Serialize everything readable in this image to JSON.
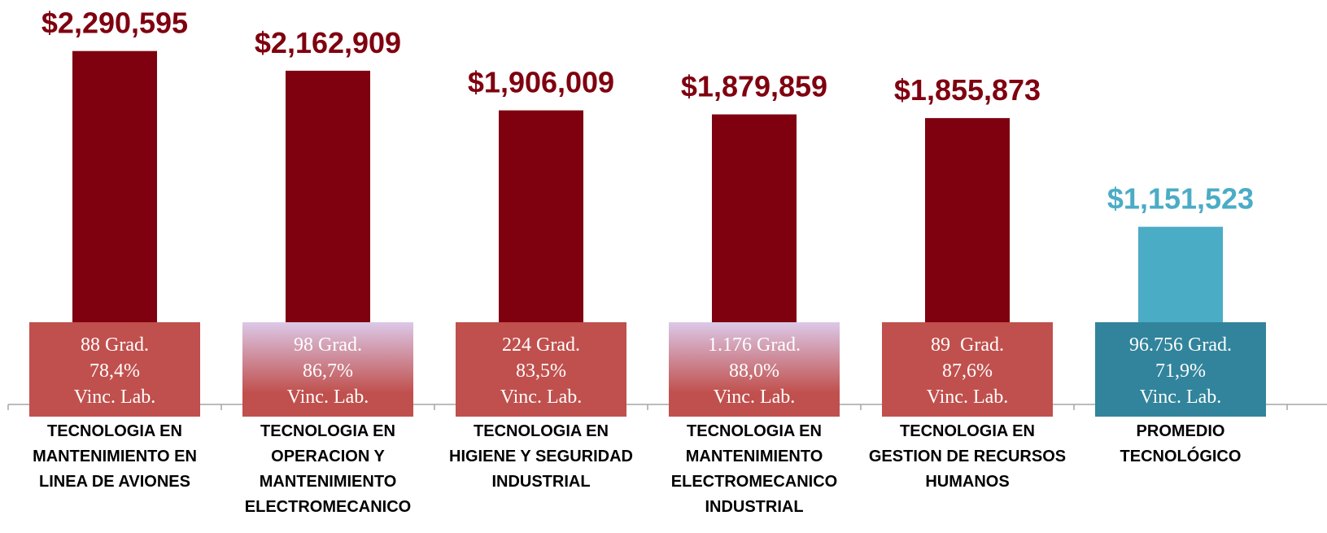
{
  "chart_data": {
    "type": "bar",
    "categories": [
      "TECNOLOGIA EN\nMANTENIMIENTO EN\nLINEA DE AVIONES",
      "TECNOLOGIA EN\nOPERACION Y\nMANTENIMIENTO\nELECTROMECANICO",
      "TECNOLOGIA EN\nHIGIENE Y SEGURIDAD\nINDUSTRIAL",
      "TECNOLOGIA EN\nMANTENIMIENTO\nELECTROMECANICO\nINDUSTRIAL",
      "TECNOLOGIA EN\nGESTION DE RECURSOS\nHUMANOS",
      "PROMEDIO\nTECNOLÓGICO"
    ],
    "values": [
      2290595,
      2162909,
      1906009,
      1879859,
      1855873,
      1151523
    ],
    "value_labels": [
      "$2,290,595",
      "$2,162,909",
      "$1,906,009",
      "$1,879,859",
      "$1,855,873",
      "$1,151,523"
    ],
    "colors": [
      "#7f000f",
      "#7f000f",
      "#7f000f",
      "#7f000f",
      "#7f000f",
      "#4bacc6"
    ],
    "box_labels": [
      [
        "88 Grad.",
        "78,4%",
        "Vinc. Lab."
      ],
      [
        "98 Grad.",
        "86,7%",
        "Vinc. Lab."
      ],
      [
        "224 Grad.",
        "83,5%",
        "Vinc. Lab."
      ],
      [
        "1.176 Grad.",
        "88,0%",
        "Vinc. Lab."
      ],
      [
        "89  Grad.",
        "87,6%",
        "Vinc. Lab."
      ],
      [
        "96.756 Grad.",
        "71,9%",
        "Vinc. Lab."
      ]
    ],
    "box_colors": [
      [
        "#c0504d",
        "#c0504d"
      ],
      [
        "#dcc8e8",
        "#c0504d"
      ],
      [
        "#c0504d",
        "#c0504d"
      ],
      [
        "#dcc8e8",
        "#c0504d"
      ],
      [
        "#c0504d",
        "#c0504d"
      ],
      [
        "#31849b",
        "#31849b"
      ]
    ],
    "ylim": [
      0,
      2500000
    ]
  }
}
